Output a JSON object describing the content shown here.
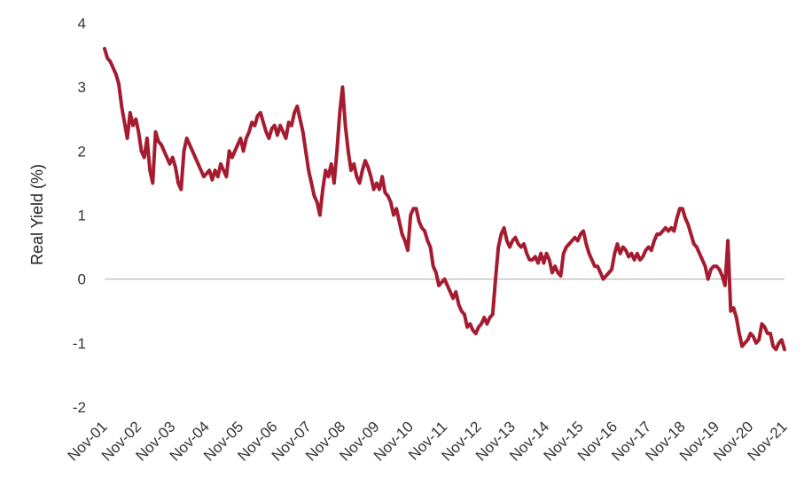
{
  "chart_data": {
    "type": "line",
    "title": "",
    "xlabel": "",
    "ylabel": "Real Yield (%)",
    "ylim": [
      -2,
      4
    ],
    "y_ticks": [
      -2,
      -1,
      0,
      1,
      2,
      3,
      4
    ],
    "x_ticks": [
      "Nov-01",
      "Nov-02",
      "Nov-03",
      "Nov-04",
      "Nov-05",
      "Nov-06",
      "Nov-07",
      "Nov-08",
      "Nov-09",
      "Nov-10",
      "Nov-11",
      "Nov-12",
      "Nov-13",
      "Nov-14",
      "Nov-15",
      "Nov-16",
      "Nov-17",
      "Nov-18",
      "Nov-19",
      "Nov-20",
      "Nov-21"
    ],
    "grid": false,
    "zero_line": true,
    "line_color": "#a51c30",
    "axis_color": "#bfbfbf",
    "series": [
      {
        "values": [
          [
            "2001-11",
            3.6
          ],
          [
            "2001-12",
            3.45
          ],
          [
            "2002-01",
            3.4
          ],
          [
            "2002-02",
            3.3
          ],
          [
            "2002-03",
            3.2
          ],
          [
            "2002-04",
            3.05
          ],
          [
            "2002-05",
            2.7
          ],
          [
            "2002-06",
            2.45
          ],
          [
            "2002-07",
            2.2
          ],
          [
            "2002-08",
            2.6
          ],
          [
            "2002-09",
            2.4
          ],
          [
            "2002-10",
            2.5
          ],
          [
            "2002-11",
            2.3
          ],
          [
            "2002-12",
            2.0
          ],
          [
            "2003-01",
            1.9
          ],
          [
            "2003-02",
            2.2
          ],
          [
            "2003-03",
            1.7
          ],
          [
            "2003-04",
            1.5
          ],
          [
            "2003-05",
            2.3
          ],
          [
            "2003-06",
            2.15
          ],
          [
            "2003-07",
            2.1
          ],
          [
            "2003-08",
            2.0
          ],
          [
            "2003-09",
            1.9
          ],
          [
            "2003-10",
            1.8
          ],
          [
            "2003-11",
            1.9
          ],
          [
            "2003-12",
            1.75
          ],
          [
            "2004-01",
            1.5
          ],
          [
            "2004-02",
            1.4
          ],
          [
            "2004-03",
            2.0
          ],
          [
            "2004-04",
            2.2
          ],
          [
            "2004-05",
            2.1
          ],
          [
            "2004-06",
            2.0
          ],
          [
            "2004-07",
            1.9
          ],
          [
            "2004-08",
            1.8
          ],
          [
            "2004-09",
            1.7
          ],
          [
            "2004-10",
            1.6
          ],
          [
            "2004-11",
            1.65
          ],
          [
            "2004-12",
            1.7
          ],
          [
            "2005-01",
            1.55
          ],
          [
            "2005-02",
            1.7
          ],
          [
            "2005-03",
            1.6
          ],
          [
            "2005-04",
            1.8
          ],
          [
            "2005-05",
            1.7
          ],
          [
            "2005-06",
            1.6
          ],
          [
            "2005-07",
            2.0
          ],
          [
            "2005-08",
            1.9
          ],
          [
            "2005-09",
            2.0
          ],
          [
            "2005-10",
            2.1
          ],
          [
            "2005-11",
            2.2
          ],
          [
            "2005-12",
            2.0
          ],
          [
            "2006-01",
            2.2
          ],
          [
            "2006-02",
            2.3
          ],
          [
            "2006-03",
            2.45
          ],
          [
            "2006-04",
            2.4
          ],
          [
            "2006-05",
            2.55
          ],
          [
            "2006-06",
            2.6
          ],
          [
            "2006-07",
            2.45
          ],
          [
            "2006-08",
            2.3
          ],
          [
            "2006-09",
            2.2
          ],
          [
            "2006-10",
            2.35
          ],
          [
            "2006-11",
            2.4
          ],
          [
            "2006-12",
            2.25
          ],
          [
            "2007-01",
            2.4
          ],
          [
            "2007-02",
            2.3
          ],
          [
            "2007-03",
            2.2
          ],
          [
            "2007-04",
            2.45
          ],
          [
            "2007-05",
            2.4
          ],
          [
            "2007-06",
            2.6
          ],
          [
            "2007-07",
            2.7
          ],
          [
            "2007-08",
            2.5
          ],
          [
            "2007-09",
            2.3
          ],
          [
            "2007-10",
            2.0
          ],
          [
            "2007-11",
            1.7
          ],
          [
            "2007-12",
            1.5
          ],
          [
            "2008-01",
            1.3
          ],
          [
            "2008-02",
            1.2
          ],
          [
            "2008-03",
            1.0
          ],
          [
            "2008-04",
            1.4
          ],
          [
            "2008-05",
            1.7
          ],
          [
            "2008-06",
            1.6
          ],
          [
            "2008-07",
            1.8
          ],
          [
            "2008-08",
            1.5
          ],
          [
            "2008-09",
            2.0
          ],
          [
            "2008-10",
            2.6
          ],
          [
            "2008-11",
            3.0
          ],
          [
            "2008-12",
            2.4
          ],
          [
            "2009-01",
            2.0
          ],
          [
            "2009-02",
            1.7
          ],
          [
            "2009-03",
            1.8
          ],
          [
            "2009-04",
            1.6
          ],
          [
            "2009-05",
            1.5
          ],
          [
            "2009-06",
            1.7
          ],
          [
            "2009-07",
            1.85
          ],
          [
            "2009-08",
            1.75
          ],
          [
            "2009-09",
            1.6
          ],
          [
            "2009-10",
            1.4
          ],
          [
            "2009-11",
            1.5
          ],
          [
            "2009-12",
            1.4
          ],
          [
            "2010-01",
            1.6
          ],
          [
            "2010-02",
            1.35
          ],
          [
            "2010-03",
            1.3
          ],
          [
            "2010-04",
            1.2
          ],
          [
            "2010-05",
            1.0
          ],
          [
            "2010-06",
            1.1
          ],
          [
            "2010-07",
            0.9
          ],
          [
            "2010-08",
            0.7
          ],
          [
            "2010-09",
            0.6
          ],
          [
            "2010-10",
            0.45
          ],
          [
            "2010-11",
            1.0
          ],
          [
            "2010-12",
            1.1
          ],
          [
            "2011-01",
            1.1
          ],
          [
            "2011-02",
            0.9
          ],
          [
            "2011-03",
            0.8
          ],
          [
            "2011-04",
            0.75
          ],
          [
            "2011-05",
            0.6
          ],
          [
            "2011-06",
            0.5
          ],
          [
            "2011-07",
            0.2
          ],
          [
            "2011-08",
            0.1
          ],
          [
            "2011-09",
            -0.1
          ],
          [
            "2011-10",
            -0.05
          ],
          [
            "2011-11",
            0.0
          ],
          [
            "2011-12",
            -0.1
          ],
          [
            "2012-01",
            -0.2
          ],
          [
            "2012-02",
            -0.3
          ],
          [
            "2012-03",
            -0.2
          ],
          [
            "2012-04",
            -0.4
          ],
          [
            "2012-05",
            -0.5
          ],
          [
            "2012-06",
            -0.55
          ],
          [
            "2012-07",
            -0.75
          ],
          [
            "2012-08",
            -0.7
          ],
          [
            "2012-09",
            -0.8
          ],
          [
            "2012-10",
            -0.85
          ],
          [
            "2012-11",
            -0.75
          ],
          [
            "2012-12",
            -0.7
          ],
          [
            "2013-01",
            -0.6
          ],
          [
            "2013-02",
            -0.7
          ],
          [
            "2013-03",
            -0.6
          ],
          [
            "2013-04",
            -0.55
          ],
          [
            "2013-05",
            0.0
          ],
          [
            "2013-06",
            0.5
          ],
          [
            "2013-07",
            0.7
          ],
          [
            "2013-08",
            0.8
          ],
          [
            "2013-09",
            0.6
          ],
          [
            "2013-10",
            0.5
          ],
          [
            "2013-11",
            0.6
          ],
          [
            "2013-12",
            0.65
          ],
          [
            "2014-01",
            0.55
          ],
          [
            "2014-02",
            0.5
          ],
          [
            "2014-03",
            0.55
          ],
          [
            "2014-04",
            0.4
          ],
          [
            "2014-05",
            0.3
          ],
          [
            "2014-06",
            0.3
          ],
          [
            "2014-07",
            0.35
          ],
          [
            "2014-08",
            0.25
          ],
          [
            "2014-09",
            0.4
          ],
          [
            "2014-10",
            0.25
          ],
          [
            "2014-11",
            0.4
          ],
          [
            "2014-12",
            0.3
          ],
          [
            "2015-01",
            0.1
          ],
          [
            "2015-02",
            0.2
          ],
          [
            "2015-03",
            0.1
          ],
          [
            "2015-04",
            0.05
          ],
          [
            "2015-05",
            0.4
          ],
          [
            "2015-06",
            0.5
          ],
          [
            "2015-07",
            0.55
          ],
          [
            "2015-08",
            0.6
          ],
          [
            "2015-09",
            0.65
          ],
          [
            "2015-10",
            0.6
          ],
          [
            "2015-11",
            0.7
          ],
          [
            "2015-12",
            0.75
          ],
          [
            "2016-01",
            0.55
          ],
          [
            "2016-02",
            0.4
          ],
          [
            "2016-03",
            0.3
          ],
          [
            "2016-04",
            0.2
          ],
          [
            "2016-05",
            0.2
          ],
          [
            "2016-06",
            0.1
          ],
          [
            "2016-07",
            0.0
          ],
          [
            "2016-08",
            0.05
          ],
          [
            "2016-09",
            0.1
          ],
          [
            "2016-10",
            0.15
          ],
          [
            "2016-11",
            0.4
          ],
          [
            "2016-12",
            0.55
          ],
          [
            "2017-01",
            0.4
          ],
          [
            "2017-02",
            0.5
          ],
          [
            "2017-03",
            0.45
          ],
          [
            "2017-04",
            0.35
          ],
          [
            "2017-05",
            0.4
          ],
          [
            "2017-06",
            0.3
          ],
          [
            "2017-07",
            0.4
          ],
          [
            "2017-08",
            0.3
          ],
          [
            "2017-09",
            0.35
          ],
          [
            "2017-10",
            0.45
          ],
          [
            "2017-11",
            0.5
          ],
          [
            "2017-12",
            0.45
          ],
          [
            "2018-01",
            0.6
          ],
          [
            "2018-02",
            0.7
          ],
          [
            "2018-03",
            0.7
          ],
          [
            "2018-04",
            0.75
          ],
          [
            "2018-05",
            0.8
          ],
          [
            "2018-06",
            0.75
          ],
          [
            "2018-07",
            0.8
          ],
          [
            "2018-08",
            0.75
          ],
          [
            "2018-09",
            0.95
          ],
          [
            "2018-10",
            1.1
          ],
          [
            "2018-11",
            1.1
          ],
          [
            "2018-12",
            0.95
          ],
          [
            "2019-01",
            0.85
          ],
          [
            "2019-02",
            0.7
          ],
          [
            "2019-03",
            0.55
          ],
          [
            "2019-04",
            0.5
          ],
          [
            "2019-05",
            0.4
          ],
          [
            "2019-06",
            0.3
          ],
          [
            "2019-07",
            0.2
          ],
          [
            "2019-08",
            0.0
          ],
          [
            "2019-09",
            0.15
          ],
          [
            "2019-10",
            0.2
          ],
          [
            "2019-11",
            0.2
          ],
          [
            "2019-12",
            0.15
          ],
          [
            "2020-01",
            0.05
          ],
          [
            "2020-02",
            -0.1
          ],
          [
            "2020-03",
            0.6
          ],
          [
            "2020-04",
            -0.5
          ],
          [
            "2020-05",
            -0.45
          ],
          [
            "2020-06",
            -0.6
          ],
          [
            "2020-07",
            -0.85
          ],
          [
            "2020-08",
            -1.05
          ],
          [
            "2020-09",
            -1.0
          ],
          [
            "2020-10",
            -0.95
          ],
          [
            "2020-11",
            -0.85
          ],
          [
            "2020-12",
            -0.9
          ],
          [
            "2021-01",
            -1.0
          ],
          [
            "2021-02",
            -0.95
          ],
          [
            "2021-03",
            -0.7
          ],
          [
            "2021-04",
            -0.75
          ],
          [
            "2021-05",
            -0.85
          ],
          [
            "2021-06",
            -0.85
          ],
          [
            "2021-07",
            -1.05
          ],
          [
            "2021-08",
            -1.1
          ],
          [
            "2021-09",
            -1.0
          ],
          [
            "2021-10",
            -0.95
          ],
          [
            "2021-11",
            -1.1
          ]
        ]
      }
    ]
  }
}
